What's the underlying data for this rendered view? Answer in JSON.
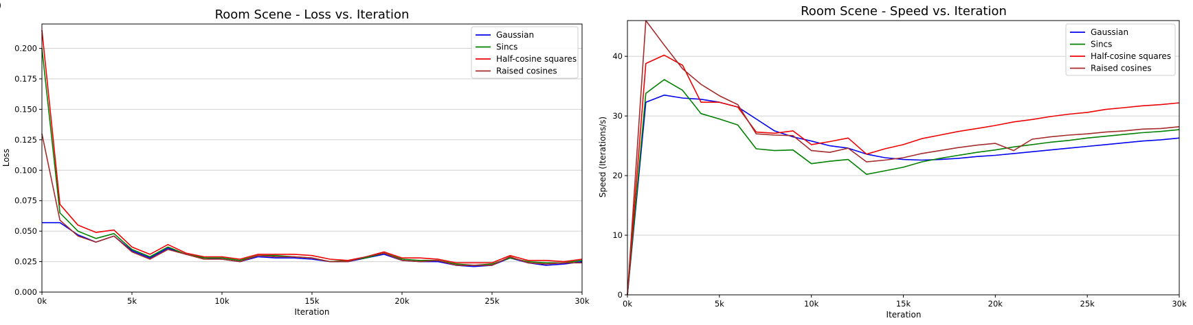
{
  "panel_letter": ")",
  "chart_data": [
    {
      "type": "line",
      "title": "Room Scene - Loss vs. Iteration",
      "xlabel": "Iteration",
      "ylabel": "Loss",
      "xlim": [
        0,
        30000
      ],
      "ylim": [
        0,
        0.22
      ],
      "grid": "horizontal",
      "legend": "top-right",
      "xticks": [
        0,
        5000,
        10000,
        15000,
        20000,
        25000,
        30000
      ],
      "xtick_labels": [
        "0k",
        "5k",
        "10k",
        "15k",
        "20k",
        "25k",
        "30k"
      ],
      "yticks": [
        0,
        0.025,
        0.05,
        0.075,
        0.1,
        0.125,
        0.15,
        0.175,
        0.2
      ],
      "ytick_labels": [
        "0.000",
        "0.025",
        "0.050",
        "0.075",
        "0.100",
        "0.125",
        "0.150",
        "0.175",
        "0.200"
      ],
      "x": [
        0,
        1000,
        2000,
        3000,
        4000,
        5000,
        6000,
        7000,
        8000,
        9000,
        10000,
        11000,
        12000,
        13000,
        14000,
        15000,
        16000,
        17000,
        18000,
        19000,
        20000,
        21000,
        22000,
        23000,
        24000,
        25000,
        26000,
        27000,
        28000,
        29000,
        30000
      ],
      "series": [
        {
          "name": "Gaussian",
          "color": "#0000ee",
          "values": [
            0.057,
            0.057,
            0.047,
            0.041,
            0.046,
            0.034,
            0.028,
            0.036,
            0.031,
            0.028,
            0.027,
            0.025,
            0.029,
            0.028,
            0.028,
            0.027,
            0.025,
            0.025,
            0.028,
            0.031,
            0.026,
            0.025,
            0.025,
            0.022,
            0.021,
            0.022,
            0.028,
            0.024,
            0.022,
            0.023,
            0.025
          ]
        },
        {
          "name": "Sincs",
          "color": "#008000",
          "values": [
            0.2,
            0.065,
            0.05,
            0.044,
            0.048,
            0.035,
            0.029,
            0.037,
            0.031,
            0.028,
            0.028,
            0.026,
            0.03,
            0.03,
            0.029,
            0.028,
            0.025,
            0.026,
            0.028,
            0.032,
            0.027,
            0.026,
            0.026,
            0.023,
            0.022,
            0.023,
            0.028,
            0.025,
            0.024,
            0.024,
            0.026
          ]
        },
        {
          "name": "Half-cosine squares",
          "color": "#ee0000",
          "values": [
            0.215,
            0.072,
            0.055,
            0.049,
            0.051,
            0.037,
            0.031,
            0.039,
            0.032,
            0.029,
            0.029,
            0.027,
            0.031,
            0.031,
            0.031,
            0.03,
            0.027,
            0.026,
            0.029,
            0.033,
            0.028,
            0.028,
            0.027,
            0.024,
            0.024,
            0.024,
            0.03,
            0.026,
            0.026,
            0.025,
            0.027
          ]
        },
        {
          "name": "Raised cosines",
          "color": "#a52a2a",
          "values": [
            0.13,
            0.059,
            0.046,
            0.041,
            0.046,
            0.033,
            0.027,
            0.035,
            0.031,
            0.027,
            0.027,
            0.025,
            0.03,
            0.029,
            0.029,
            0.028,
            0.025,
            0.025,
            0.029,
            0.032,
            0.026,
            0.025,
            0.026,
            0.022,
            0.022,
            0.022,
            0.029,
            0.024,
            0.023,
            0.024,
            0.024
          ]
        }
      ]
    },
    {
      "type": "line",
      "title": "Room Scene - Speed vs. Iteration",
      "xlabel": "Iteration",
      "ylabel": "Speed (Iterations/s)",
      "xlim": [
        0,
        30000
      ],
      "ylim": [
        0,
        46
      ],
      "grid": "horizontal",
      "legend": "top-right",
      "xticks": [
        0,
        5000,
        10000,
        15000,
        20000,
        25000,
        30000
      ],
      "xtick_labels": [
        "0k",
        "5k",
        "10k",
        "15k",
        "20k",
        "25k",
        "30k"
      ],
      "yticks": [
        0,
        10,
        20,
        30,
        40
      ],
      "ytick_labels": [
        "0",
        "10",
        "20",
        "30",
        "40"
      ],
      "x": [
        0,
        1000,
        2000,
        3000,
        4000,
        5000,
        6000,
        7000,
        8000,
        9000,
        10000,
        11000,
        12000,
        13000,
        14000,
        15000,
        16000,
        17000,
        18000,
        19000,
        20000,
        21000,
        22000,
        23000,
        24000,
        25000,
        26000,
        27000,
        28000,
        29000,
        30000
      ],
      "series": [
        {
          "name": "Gaussian",
          "color": "#0000ee",
          "values": [
            0,
            32.3,
            33.5,
            33.0,
            32.8,
            32.3,
            31.5,
            29.5,
            27.5,
            26.5,
            25.8,
            25.0,
            24.6,
            23.6,
            23.0,
            22.7,
            22.6,
            22.7,
            22.9,
            23.2,
            23.4,
            23.7,
            24.0,
            24.3,
            24.6,
            24.9,
            25.2,
            25.5,
            25.8,
            26.0,
            26.3
          ]
        },
        {
          "name": "Sincs",
          "color": "#008000",
          "values": [
            0,
            33.8,
            36.1,
            34.3,
            30.4,
            29.5,
            28.5,
            24.5,
            24.2,
            24.3,
            22.0,
            22.4,
            22.7,
            20.2,
            20.8,
            21.4,
            22.3,
            22.9,
            23.4,
            23.9,
            24.3,
            24.8,
            25.2,
            25.6,
            25.9,
            26.3,
            26.6,
            26.9,
            27.2,
            27.4,
            27.7
          ]
        },
        {
          "name": "Half-cosine squares",
          "color": "#ee0000",
          "values": [
            0,
            38.8,
            40.2,
            38.5,
            32.3,
            32.3,
            31.5,
            27.3,
            27.1,
            27.5,
            25.2,
            25.7,
            26.3,
            23.6,
            24.5,
            25.2,
            26.2,
            26.8,
            27.4,
            27.9,
            28.4,
            29.0,
            29.4,
            29.9,
            30.3,
            30.6,
            31.1,
            31.4,
            31.7,
            31.9,
            32.2
          ]
        },
        {
          "name": "Raised cosines",
          "color": "#a52a2a",
          "values": [
            0,
            46.0,
            41.9,
            37.9,
            35.3,
            33.4,
            31.9,
            27.0,
            26.8,
            26.7,
            24.2,
            23.9,
            24.6,
            22.3,
            22.6,
            23.0,
            23.7,
            24.2,
            24.7,
            25.1,
            25.4,
            24.2,
            26.1,
            26.5,
            26.8,
            27.0,
            27.3,
            27.5,
            27.8,
            27.9,
            28.2
          ]
        }
      ]
    }
  ]
}
